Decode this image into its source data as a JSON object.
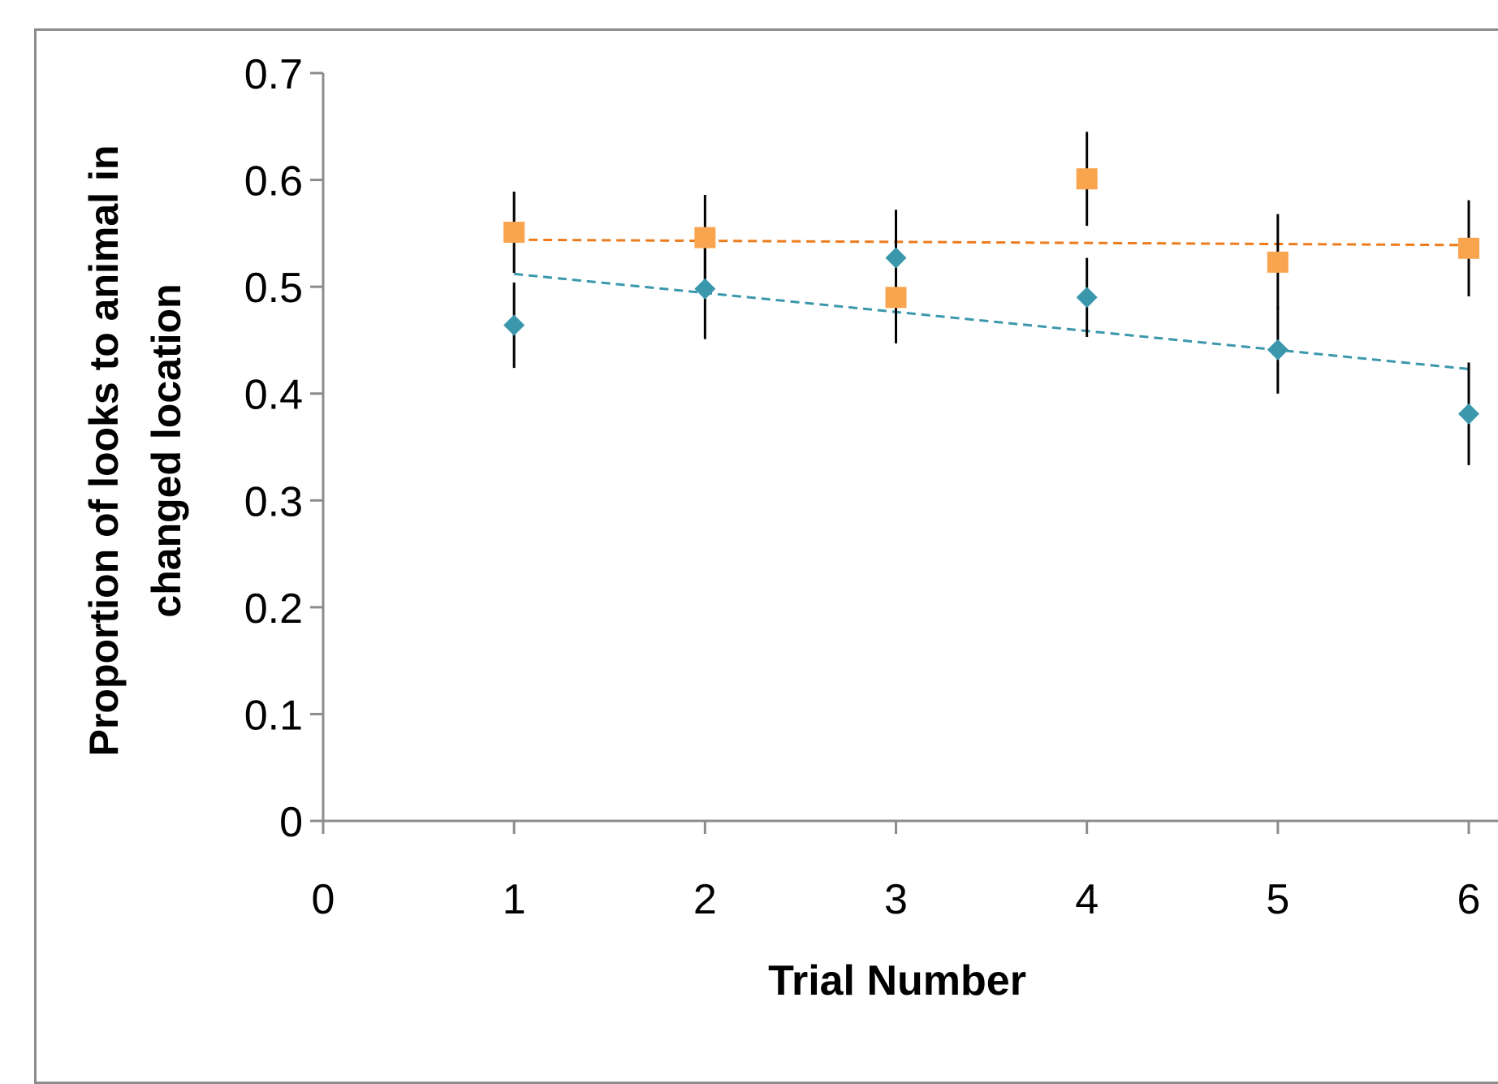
{
  "chart_data": {
    "type": "scatter",
    "title": "",
    "xlabel": "Trial Number",
    "ylabel_lines": [
      "Proportion of looks to animal in",
      "changed location"
    ],
    "xlim": [
      0,
      6
    ],
    "ylim": [
      0,
      0.7
    ],
    "x_ticks": [
      0,
      1,
      2,
      3,
      4,
      5,
      6
    ],
    "x_tick_labels": [
      "0",
      "1",
      "2",
      "3",
      "4",
      "5",
      "6"
    ],
    "y_ticks": [
      0,
      0.1,
      0.2,
      0.3,
      0.4,
      0.5,
      0.6,
      0.7
    ],
    "y_tick_labels": [
      "0",
      "0.1",
      "0.2",
      "0.3",
      "0.4",
      "0.5",
      "0.6",
      "0.7"
    ],
    "grid": false,
    "legend": "none",
    "series": [
      {
        "marker": "square",
        "color": "#f9a54f",
        "trendline_color": "#ec7c1d",
        "x": [
          1,
          2,
          3,
          4,
          5,
          6
        ],
        "y": [
          0.551,
          0.546,
          0.49,
          0.601,
          0.523,
          0.536
        ],
        "error": [
          0.038,
          0.04,
          0.043,
          0.044,
          0.045,
          0.045
        ],
        "trendline": [
          0.544,
          0.539
        ]
      },
      {
        "marker": "diamond",
        "color": "#3a97ac",
        "trendline_color": "#3a97ac",
        "x": [
          1,
          2,
          3,
          4,
          5,
          6
        ],
        "y": [
          0.464,
          0.498,
          0.527,
          0.49,
          0.441,
          0.381
        ],
        "error": [
          0.04,
          0.047,
          0.045,
          0.037,
          0.041,
          0.048
        ],
        "trendline": [
          0.512,
          0.423
        ]
      }
    ]
  }
}
